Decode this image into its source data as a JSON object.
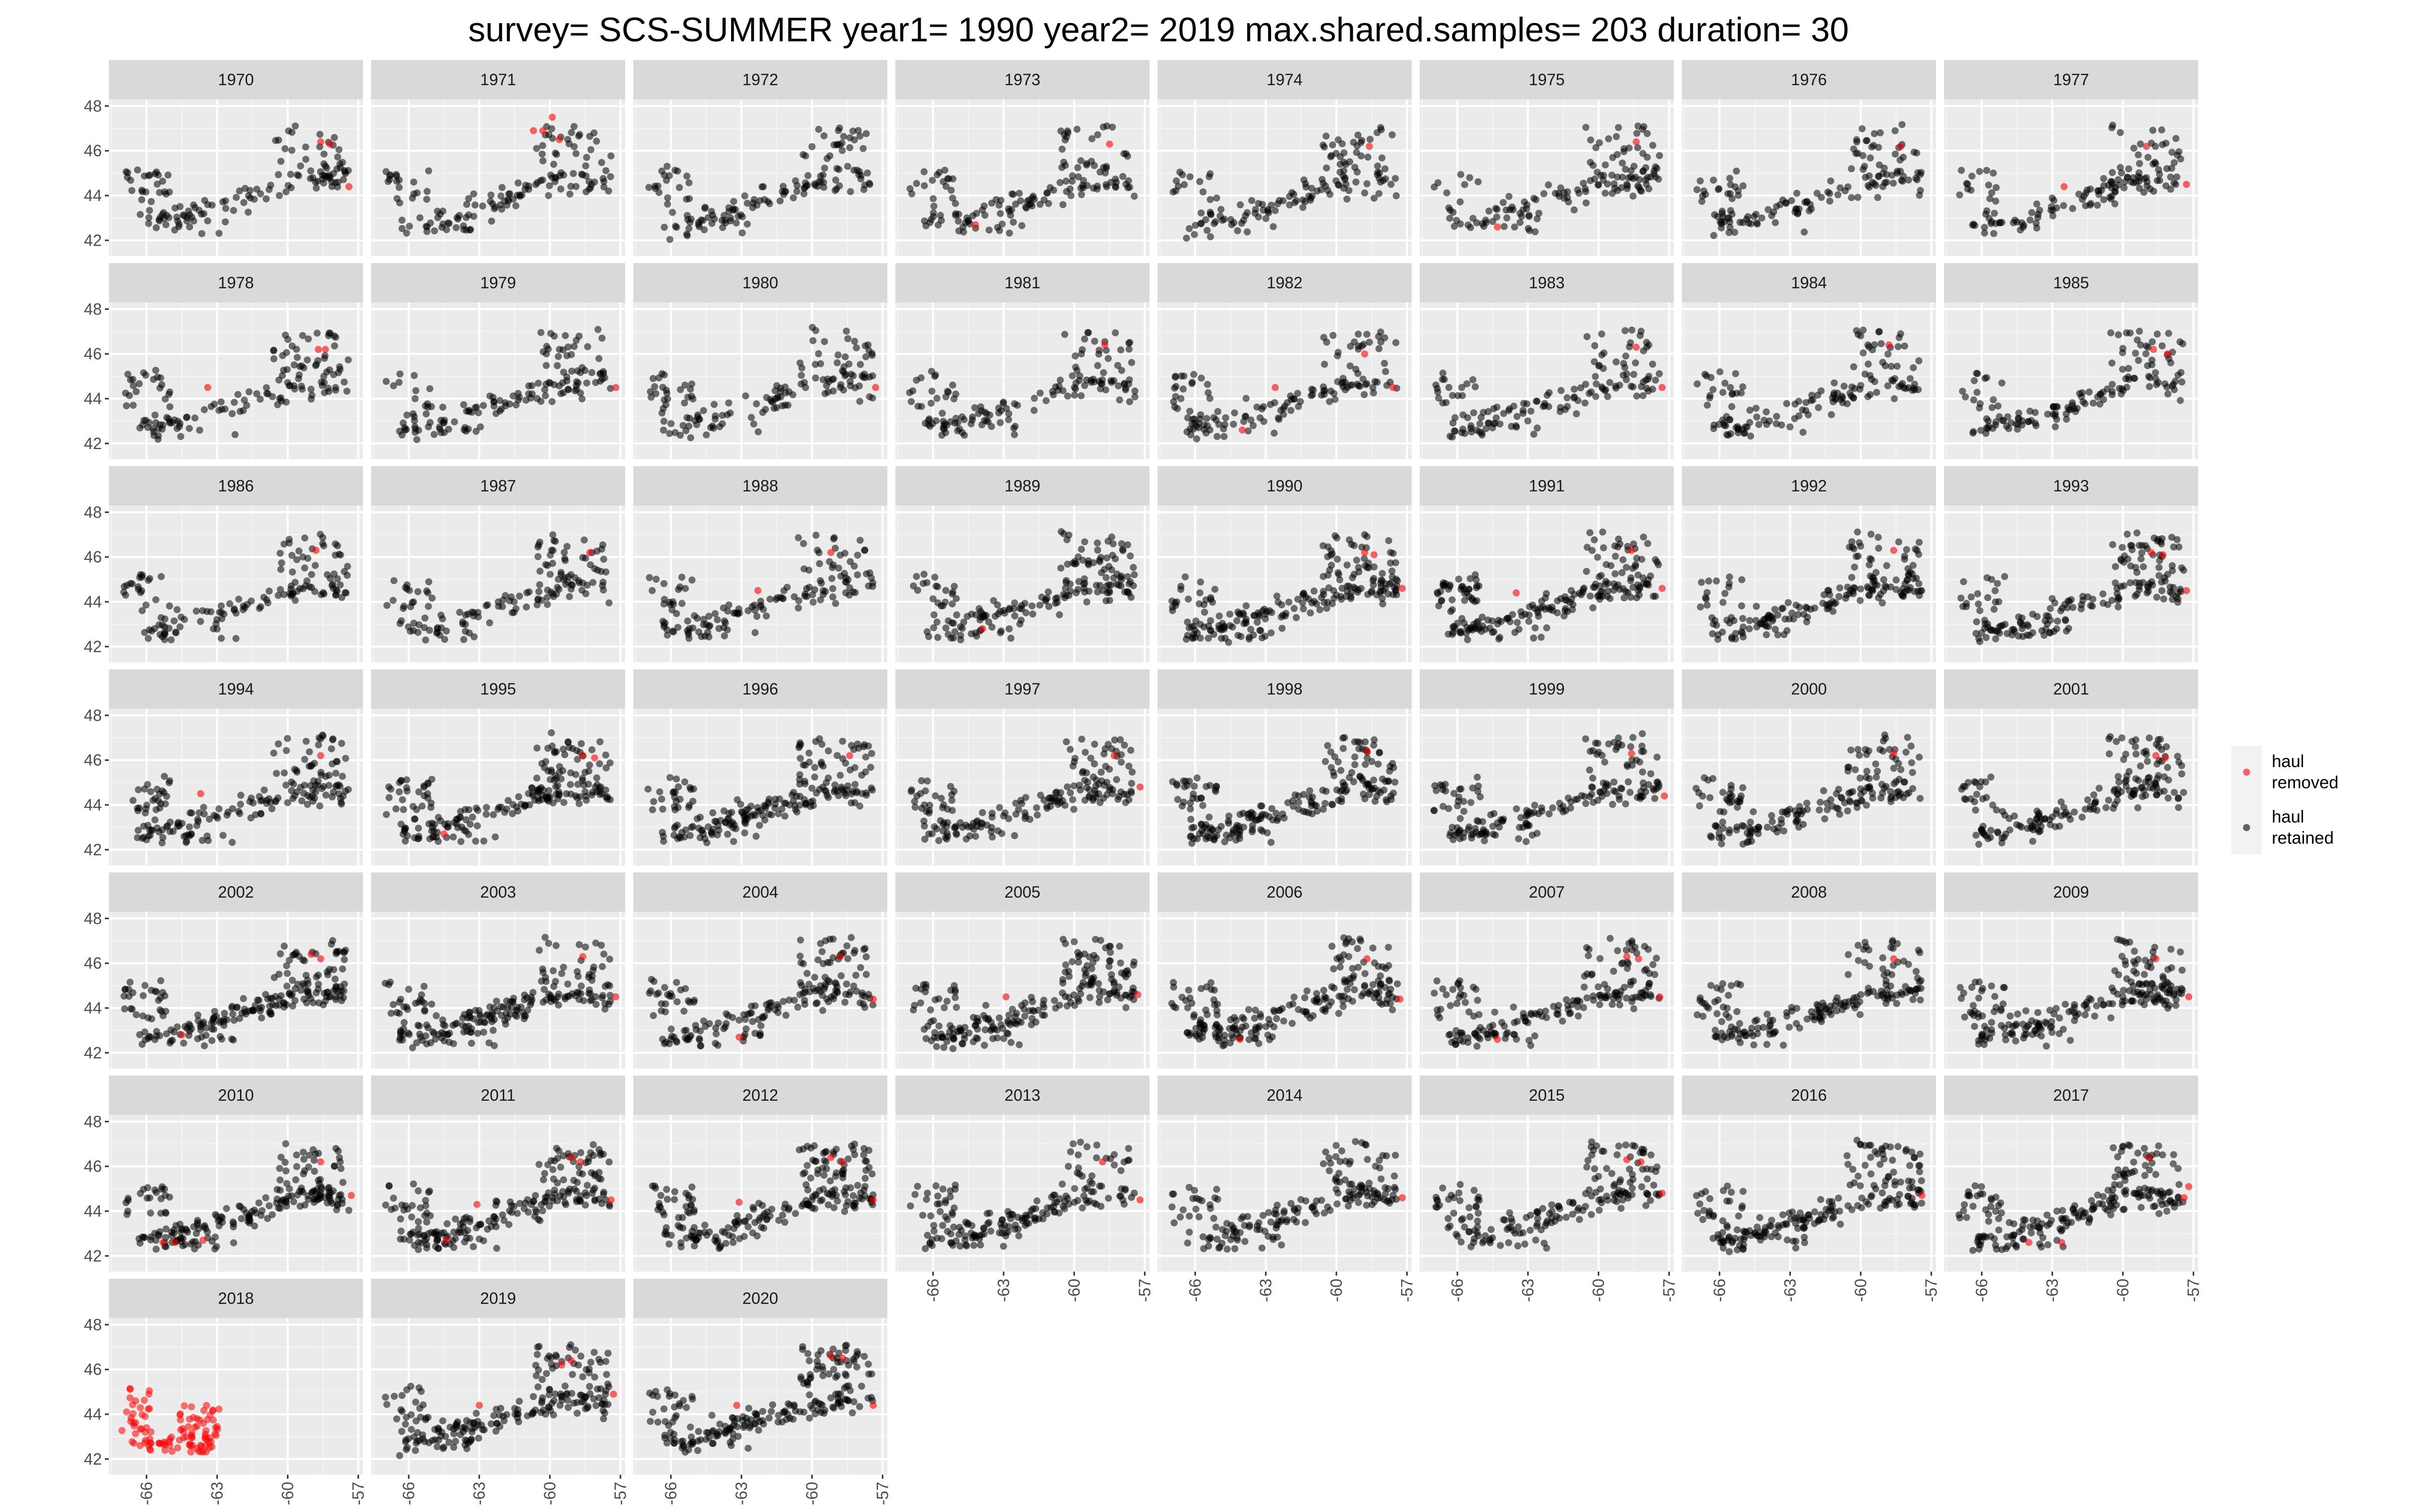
{
  "chart_data": {
    "type": "scatter",
    "title": "survey= SCS-SUMMER year1= 1990 year2= 2019 max.shared.samples= 203 duration= 30",
    "xlabel": "",
    "ylabel": "",
    "xlim": [
      -67.6,
      -56.8
    ],
    "ylim": [
      41.3,
      48.3
    ],
    "x_ticks": [
      -66,
      -63,
      -60,
      -57
    ],
    "x_tick_labels": [
      "-66",
      "-63",
      "-60",
      "-57"
    ],
    "y_ticks": [
      42,
      44,
      46,
      48
    ],
    "y_tick_labels": [
      "42",
      "44",
      "46",
      "48"
    ],
    "grid": true,
    "facet_ncol": 8,
    "legend_position": "right",
    "legend": [
      {
        "key": "removed",
        "label_lines": [
          "haul",
          "removed"
        ],
        "color": "#ff0000"
      },
      {
        "key": "retained",
        "label_lines": [
          "haul",
          "retained"
        ],
        "color": "#000000"
      }
    ],
    "panels": [
      {
        "year": "1970"
      },
      {
        "year": "1971"
      },
      {
        "year": "1972"
      },
      {
        "year": "1973"
      },
      {
        "year": "1974"
      },
      {
        "year": "1975"
      },
      {
        "year": "1976"
      },
      {
        "year": "1977"
      },
      {
        "year": "1978"
      },
      {
        "year": "1979"
      },
      {
        "year": "1980"
      },
      {
        "year": "1981"
      },
      {
        "year": "1982"
      },
      {
        "year": "1983"
      },
      {
        "year": "1984"
      },
      {
        "year": "1985"
      },
      {
        "year": "1986"
      },
      {
        "year": "1987"
      },
      {
        "year": "1988"
      },
      {
        "year": "1989"
      },
      {
        "year": "1990"
      },
      {
        "year": "1991"
      },
      {
        "year": "1992"
      },
      {
        "year": "1993"
      },
      {
        "year": "1994"
      },
      {
        "year": "1995"
      },
      {
        "year": "1996"
      },
      {
        "year": "1997"
      },
      {
        "year": "1998"
      },
      {
        "year": "1999"
      },
      {
        "year": "2000"
      },
      {
        "year": "2001"
      },
      {
        "year": "2002"
      },
      {
        "year": "2003"
      },
      {
        "year": "2004"
      },
      {
        "year": "2005"
      },
      {
        "year": "2006"
      },
      {
        "year": "2007"
      },
      {
        "year": "2008"
      },
      {
        "year": "2009"
      },
      {
        "year": "2010"
      },
      {
        "year": "2011"
      },
      {
        "year": "2012"
      },
      {
        "year": "2013"
      },
      {
        "year": "2014"
      },
      {
        "year": "2015"
      },
      {
        "year": "2016"
      },
      {
        "year": "2017"
      },
      {
        "year": "2018"
      },
      {
        "year": "2019"
      },
      {
        "year": "2020"
      }
    ],
    "removed_points": {
      "1970": [
        [
          -58.6,
          46.4
        ],
        [
          -58.2,
          46.3
        ],
        [
          -57.4,
          44.4
        ]
      ],
      "1971": [
        [
          -60.7,
          46.9
        ],
        [
          -60.3,
          46.9
        ],
        [
          -59.9,
          47.5
        ],
        [
          -59.6,
          46.5
        ]
      ],
      "1973": [
        [
          -64.2,
          42.7
        ],
        [
          -58.5,
          46.3
        ]
      ],
      "1974": [
        [
          -58.6,
          46.2
        ]
      ],
      "1975": [
        [
          -64.3,
          42.6
        ],
        [
          -58.4,
          46.4
        ]
      ],
      "1976": [
        [
          -58.3,
          46.2
        ]
      ],
      "1977": [
        [
          -62.5,
          44.4
        ],
        [
          -57.3,
          44.5
        ],
        [
          -59.0,
          46.2
        ]
      ],
      "1978": [
        [
          -63.4,
          44.5
        ],
        [
          -58.7,
          46.2
        ],
        [
          -58.4,
          46.2
        ]
      ],
      "1979": [
        [
          -57.2,
          44.5
        ]
      ],
      "1980": [
        [
          -57.3,
          44.5
        ]
      ],
      "1981": [
        [
          -58.7,
          46.4
        ]
      ],
      "1982": [
        [
          -64.0,
          42.6
        ],
        [
          -62.6,
          44.5
        ],
        [
          -57.6,
          44.5
        ],
        [
          -58.8,
          46.0
        ]
      ],
      "1983": [
        [
          -58.4,
          46.3
        ],
        [
          -57.3,
          44.5
        ]
      ],
      "1984": [
        [
          -58.8,
          46.4
        ]
      ],
      "1985": [
        [
          -58.7,
          46.2
        ],
        [
          -58.1,
          46.0
        ]
      ],
      "1986": [
        [
          -58.8,
          46.3
        ]
      ],
      "1987": [
        [
          -58.3,
          46.2
        ]
      ],
      "1988": [
        [
          -62.3,
          44.5
        ],
        [
          -59.2,
          46.2
        ]
      ],
      "1989": [
        [
          -63.9,
          42.8
        ]
      ],
      "1990": [
        [
          -58.8,
          46.2
        ],
        [
          -58.4,
          46.1
        ],
        [
          -57.2,
          44.6
        ]
      ],
      "1991": [
        [
          -63.5,
          44.4
        ],
        [
          -58.6,
          46.3
        ],
        [
          -57.3,
          44.6
        ]
      ],
      "1992": [
        [
          -58.6,
          46.3
        ]
      ],
      "1993": [
        [
          -58.8,
          46.2
        ],
        [
          -58.3,
          46.1
        ],
        [
          -57.3,
          44.5
        ]
      ],
      "1994": [
        [
          -63.7,
          44.5
        ],
        [
          -58.6,
          46.2
        ]
      ],
      "1995": [
        [
          -64.5,
          42.7
        ],
        [
          -58.6,
          46.2
        ],
        [
          -58.1,
          46.1
        ]
      ],
      "1996": [
        [
          -58.4,
          46.2
        ]
      ],
      "1997": [
        [
          -58.3,
          46.2
        ],
        [
          -57.2,
          44.8
        ]
      ],
      "1998": [
        [
          -58.7,
          46.4
        ]
      ],
      "1999": [
        [
          -58.6,
          46.3
        ],
        [
          -57.2,
          44.4
        ]
      ],
      "2000": [
        [
          -58.6,
          46.3
        ]
      ],
      "2001": [
        [
          -58.6,
          46.2
        ],
        [
          -58.2,
          46.1
        ]
      ],
      "2002": [
        [
          -64.5,
          42.8
        ],
        [
          -59.0,
          46.4
        ],
        [
          -58.6,
          46.2
        ]
      ],
      "2003": [
        [
          -58.6,
          46.3
        ],
        [
          -57.2,
          44.5
        ]
      ],
      "2004": [
        [
          -63.1,
          42.7
        ],
        [
          -58.8,
          46.3
        ],
        [
          -57.4,
          44.4
        ]
      ],
      "2005": [
        [
          -62.9,
          44.5
        ],
        [
          -57.3,
          44.6
        ]
      ],
      "2006": [
        [
          -64.1,
          42.6
        ],
        [
          -58.7,
          46.2
        ],
        [
          -57.3,
          44.4
        ]
      ],
      "2007": [
        [
          -64.3,
          42.6
        ],
        [
          -58.8,
          46.3
        ],
        [
          -58.3,
          46.2
        ],
        [
          -57.4,
          44.5
        ]
      ],
      "2008": [
        [
          -58.6,
          46.2
        ]
      ],
      "2009": [
        [
          -58.6,
          46.2
        ],
        [
          -57.2,
          44.5
        ]
      ],
      "2010": [
        [
          -65.3,
          42.6
        ],
        [
          -64.8,
          42.6
        ],
        [
          -63.6,
          42.7
        ],
        [
          -58.6,
          46.2
        ],
        [
          -57.3,
          44.7
        ]
      ],
      "2011": [
        [
          -64.4,
          42.7
        ],
        [
          -63.1,
          44.3
        ],
        [
          -59.1,
          46.4
        ],
        [
          -58.7,
          46.2
        ],
        [
          -57.4,
          44.5
        ]
      ],
      "2012": [
        [
          -63.1,
          44.4
        ],
        [
          -59.2,
          46.4
        ],
        [
          -58.7,
          46.2
        ],
        [
          -57.4,
          44.5
        ]
      ],
      "2013": [
        [
          -58.8,
          46.2
        ],
        [
          -57.2,
          44.5
        ]
      ],
      "2014": [
        [
          -57.2,
          44.6
        ]
      ],
      "2015": [
        [
          -58.8,
          46.3
        ],
        [
          -58.2,
          46.2
        ],
        [
          -57.3,
          44.8
        ]
      ],
      "2016": [
        [
          -57.4,
          44.7
        ]
      ],
      "2017": [
        [
          -64.0,
          42.6
        ],
        [
          -62.6,
          42.6
        ],
        [
          -58.9,
          46.4
        ],
        [
          -57.4,
          44.6
        ],
        [
          -57.2,
          45.1
        ]
      ],
      "2019": [
        [
          -63.0,
          44.4
        ],
        [
          -59.5,
          46.2
        ],
        [
          -59.1,
          46.4
        ],
        [
          -57.3,
          44.9
        ]
      ],
      "2020": [
        [
          -63.2,
          44.4
        ],
        [
          -59.2,
          46.6
        ],
        [
          -58.7,
          46.5
        ],
        [
          -57.4,
          44.4
        ]
      ]
    },
    "all_removed_panels": [
      "2018"
    ],
    "sparse_panels": [
      "1970",
      "1971",
      "1972",
      "1973",
      "1974",
      "1975",
      "1976",
      "1977",
      "1978",
      "1979",
      "1980",
      "1981",
      "1982",
      "1983",
      "1984",
      "1985",
      "1986",
      "1987",
      "1988"
    ],
    "dense_panels": [
      "1990",
      "1991",
      "1995",
      "1996",
      "1998",
      "2002",
      "2003",
      "2005",
      "2006",
      "2009",
      "2010",
      "2011",
      "2012",
      "2016",
      "2017",
      "2019",
      "2020"
    ]
  }
}
